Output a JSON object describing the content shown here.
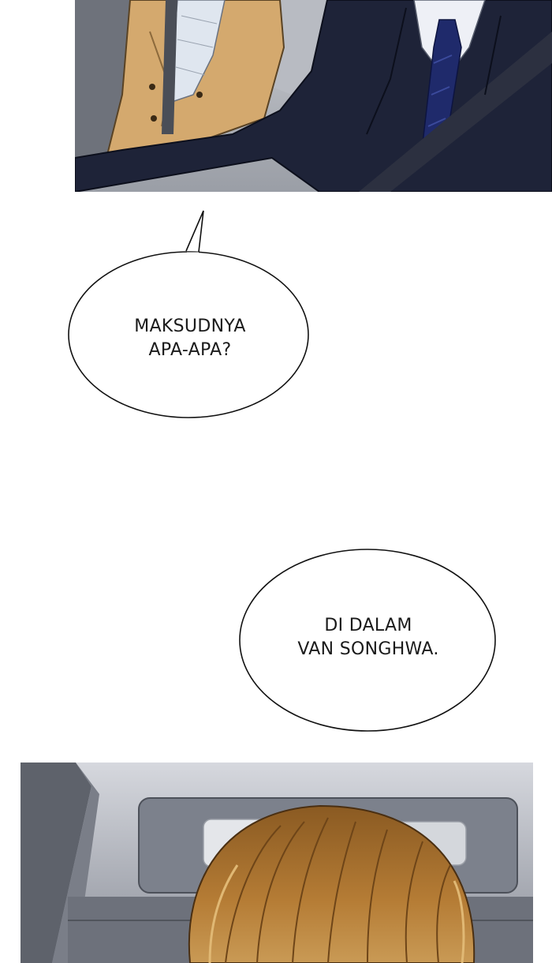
{
  "bubbles": [
    {
      "lines": [
        "MAKSUDNYA",
        "APA-APA?"
      ]
    },
    {
      "lines": [
        "DI DALAM",
        "VAN SONGHWA."
      ]
    }
  ],
  "colors": {
    "page_background": "#ffffff",
    "bubble_fill": "#ffffff",
    "bubble_stroke": "#111111",
    "suit_navy": "#1e2338",
    "coat_tan": "#d4a96e",
    "tie_blue": "#1f2a6b",
    "car_interior_gray": "#8a8f99",
    "hair_brown": "#a8702e"
  },
  "panels": [
    {
      "id": "top",
      "content": "car-interior-two-passengers"
    },
    {
      "id": "bottom",
      "content": "car-interior-back-of-head"
    }
  ]
}
